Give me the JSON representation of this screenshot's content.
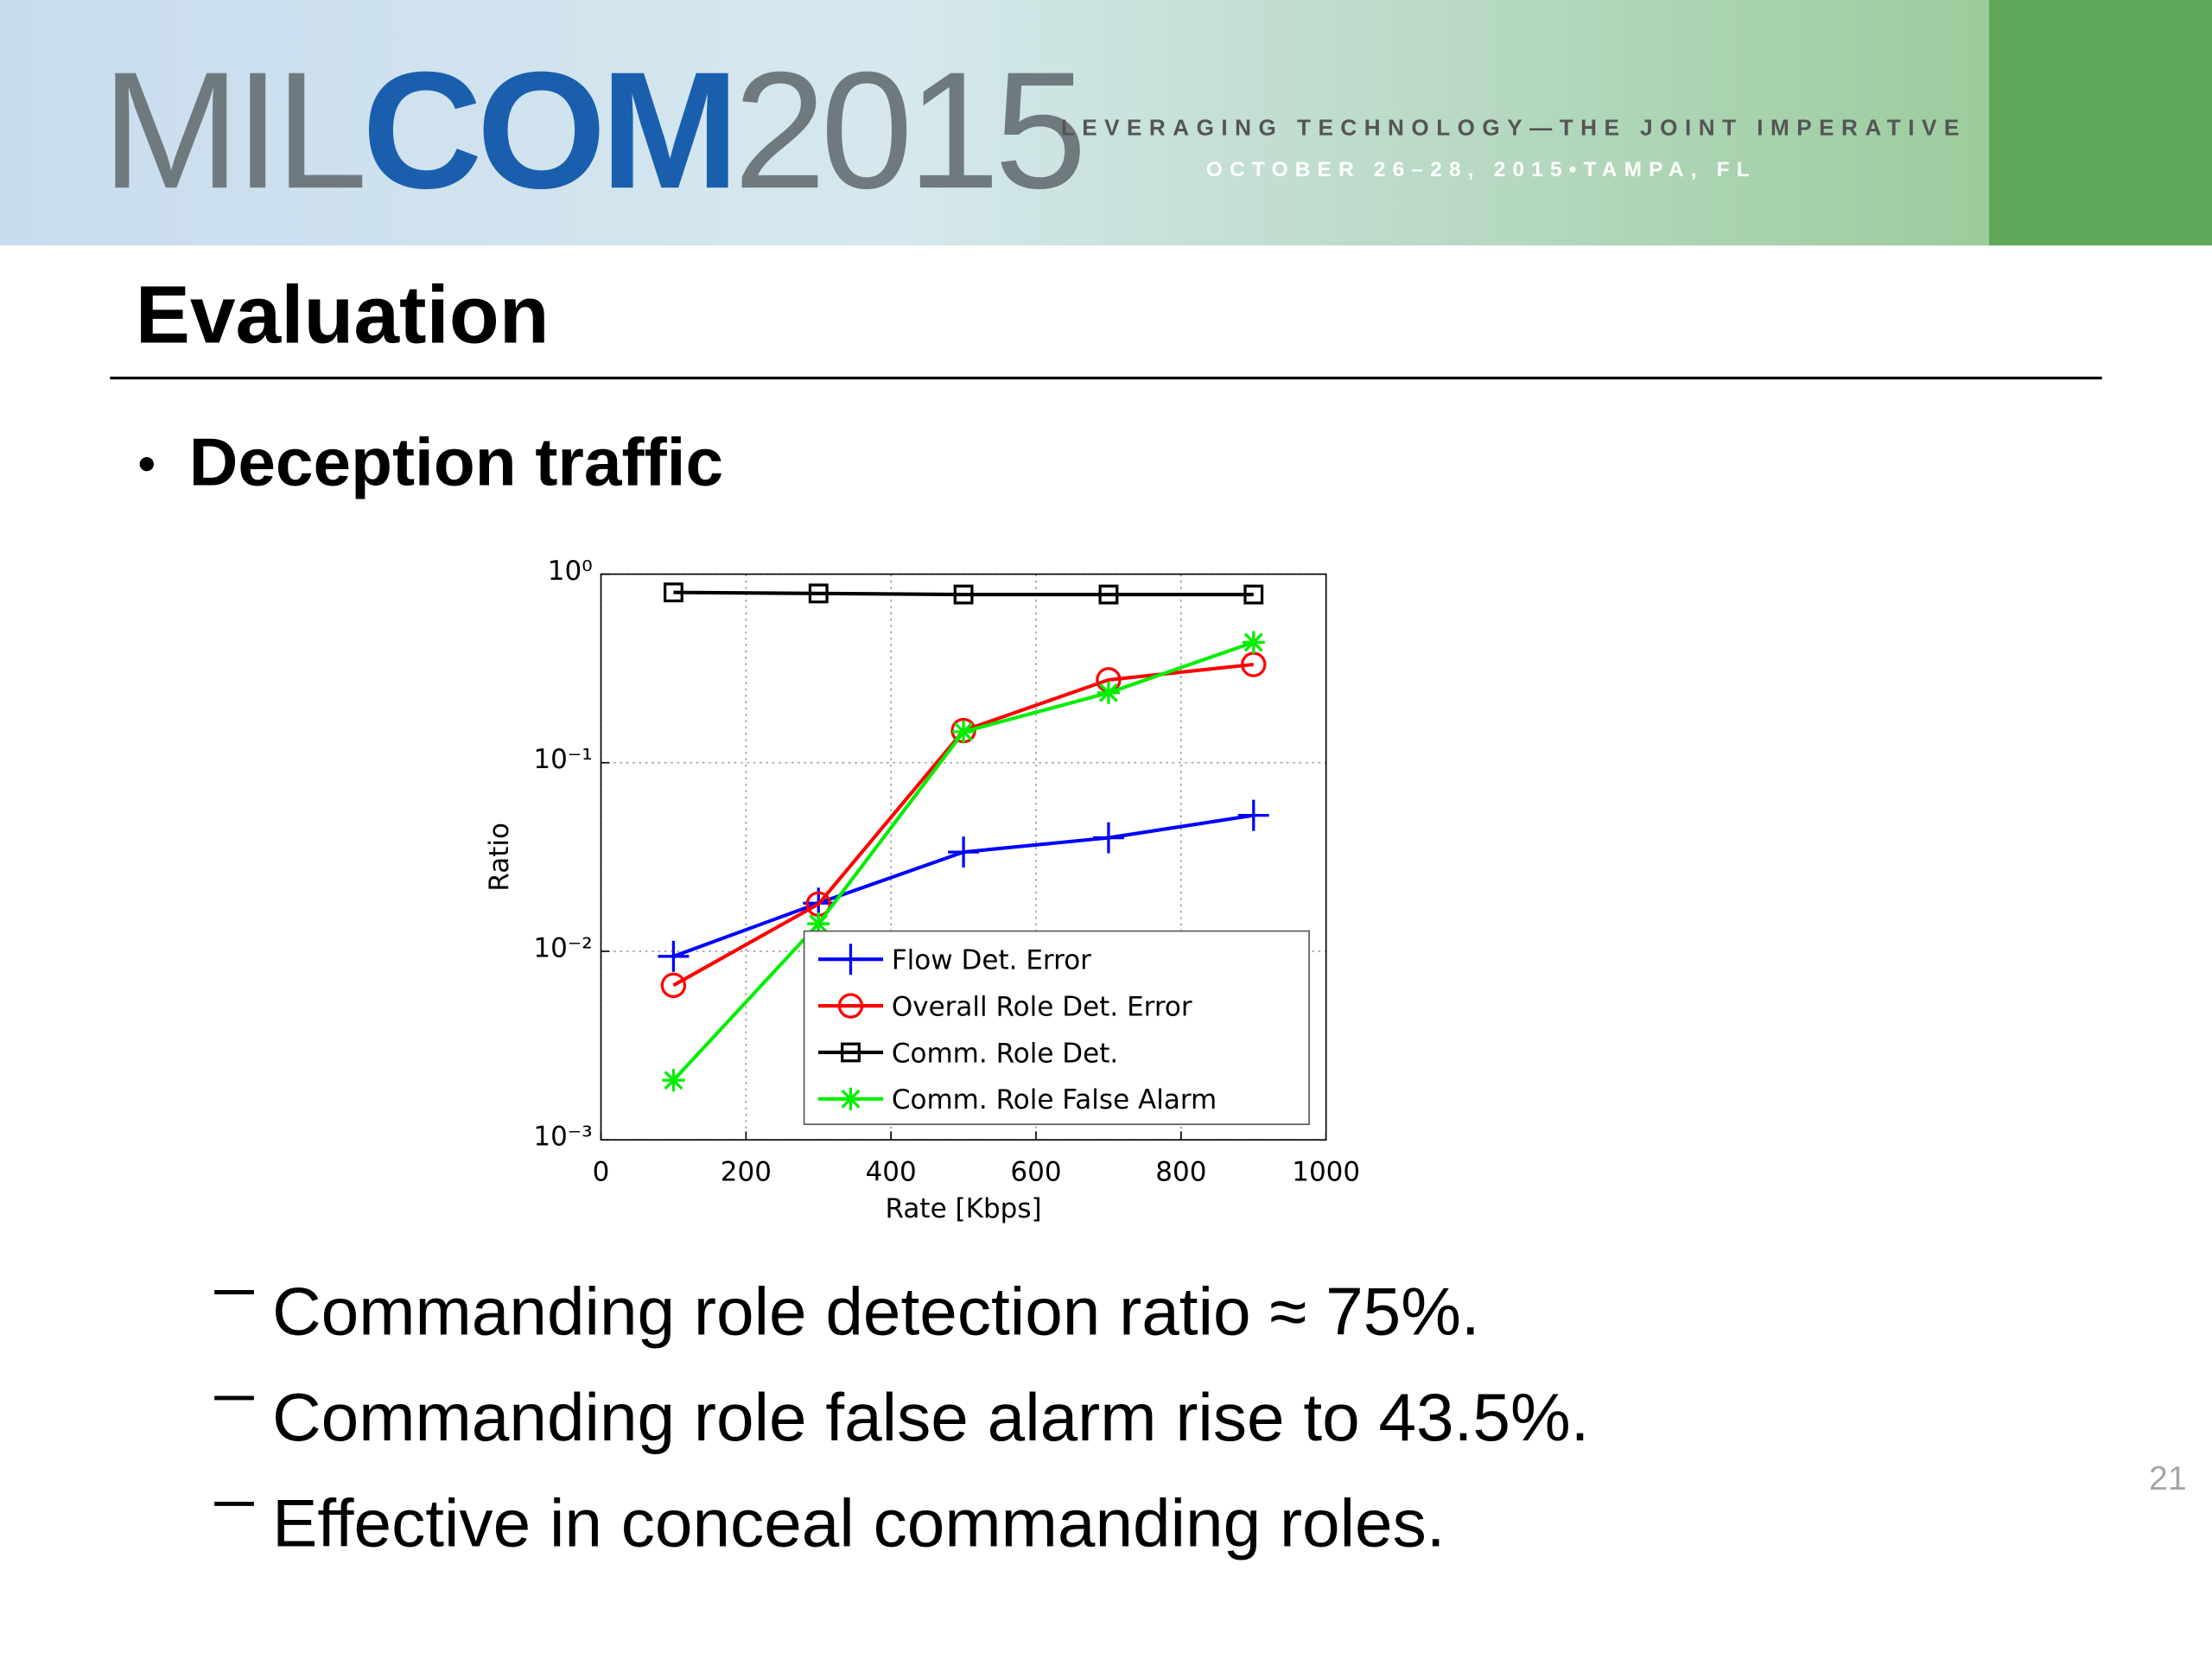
{
  "header": {
    "logo_left": "MIL",
    "logo_mid": "COM",
    "logo_right": "2015",
    "tagline": "LEVERAGING TECHNOLOGY—THE JOINT IMPERATIVE",
    "dates": "OCTOBER 26–28, 2015•TAMPA, FL"
  },
  "title": "Evaluation",
  "bullet": "Deception traffic",
  "sub_bullets": [
    "Commanding role detection ratio ≈ 75%.",
    "Commanding role false alarm rise to 43.5%.",
    "Effective in conceal commanding roles."
  ],
  "page_number": "21",
  "chart_data": {
    "type": "line",
    "x_label": "Rate [Kbps]",
    "y_label": "Ratio",
    "x": [
      100,
      300,
      500,
      700,
      900
    ],
    "series": [
      {
        "name": "Flow Det. Error",
        "color": "#0000ff",
        "marker": "plus",
        "values": [
          0.0094,
          0.018,
          0.0336,
          0.04,
          0.0526
        ]
      },
      {
        "name": "Overall Role Det. Error",
        "color": "#ff0000",
        "marker": "circle",
        "values": [
          0.0066,
          0.0178,
          0.148,
          0.275,
          0.332
        ]
      },
      {
        "name": "Comm. Role Det.",
        "color": "#000000",
        "marker": "square",
        "values": [
          0.8,
          0.79,
          0.78,
          0.78,
          0.78
        ]
      },
      {
        "name": "Comm. Role False Alarm",
        "color": "#00ee00",
        "marker": "asterisk",
        "values": [
          0.00207,
          0.014,
          0.146,
          0.235,
          0.435
        ]
      }
    ],
    "xlim": [
      0,
      1000
    ],
    "xticks": [
      0,
      200,
      400,
      600,
      800,
      1000
    ],
    "ylim": [
      0.001,
      1
    ],
    "yticks": [
      {
        "value": 0.001,
        "label": "10⁻³"
      },
      {
        "value": 0.01,
        "label": "10⁻²"
      },
      {
        "value": 0.1,
        "label": "10⁻¹"
      },
      {
        "value": 1,
        "label": "10⁰"
      }
    ],
    "log_y": true,
    "grid": true,
    "legend": "lower right"
  }
}
